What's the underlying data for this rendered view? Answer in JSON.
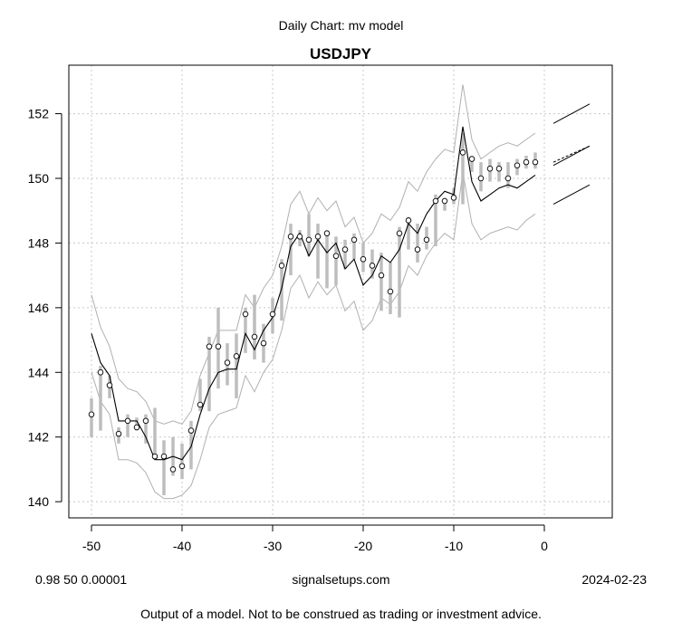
{
  "header": {
    "suptitle": "Daily Chart: mv model",
    "footer_left": "0.98 50 0.00001",
    "footer_center": "signalsetups.com",
    "footer_right": "2024-02-23",
    "disclaimer": "Output of a model.  Not to be construed as trading or investment advice."
  },
  "chart_data": {
    "type": "line",
    "title": "USDJPY",
    "xlabel": "",
    "ylabel": "",
    "xlim": [
      -52.5,
      7.5
    ],
    "ylim": [
      139.5,
      153.5
    ],
    "xticks": [
      -50,
      -40,
      -30,
      -20,
      -10,
      0
    ],
    "yticks": [
      140,
      142,
      144,
      146,
      148,
      150,
      152
    ],
    "grid": true,
    "colors": {
      "bars": "#bdbdbd",
      "model": "#000000",
      "bands": "#b0b0b0",
      "grid": "#c8c8c8"
    },
    "x": [
      -50,
      -49,
      -48,
      -47,
      -46,
      -45,
      -44,
      -43,
      -42,
      -41,
      -40,
      -39,
      -38,
      -37,
      -36,
      -35,
      -34,
      -33,
      -32,
      -31,
      -30,
      -29,
      -28,
      -27,
      -26,
      -25,
      -24,
      -23,
      -22,
      -21,
      -20,
      -19,
      -18,
      -17,
      -16,
      -15,
      -14,
      -13,
      -12,
      -11,
      -10,
      -9,
      -8,
      -7,
      -6,
      -5,
      -4,
      -3,
      -2,
      -1
    ],
    "series": [
      {
        "role": "close",
        "values": [
          142.7,
          144.0,
          143.6,
          142.1,
          142.5,
          142.3,
          142.5,
          141.4,
          141.4,
          141.0,
          141.1,
          142.2,
          143.0,
          144.8,
          144.8,
          144.3,
          144.5,
          145.8,
          145.1,
          144.9,
          145.8,
          147.3,
          148.2,
          148.2,
          148.1,
          148.2,
          148.3,
          147.6,
          147.8,
          148.1,
          147.5,
          147.3,
          147.0,
          146.5,
          148.3,
          148.7,
          147.8,
          148.1,
          149.3,
          149.3,
          149.4,
          150.8,
          150.6,
          150.0,
          150.3,
          150.3,
          150.0,
          150.4,
          150.5,
          150.5
        ]
      },
      {
        "role": "high",
        "values": [
          143.2,
          144.2,
          143.9,
          142.3,
          142.7,
          142.6,
          142.7,
          142.9,
          141.9,
          142.0,
          141.8,
          142.5,
          143.8,
          145.1,
          146.0,
          144.9,
          145.2,
          146.0,
          146.4,
          145.5,
          146.3,
          147.5,
          148.6,
          148.4,
          148.9,
          148.6,
          148.4,
          148.2,
          148.1,
          148.3,
          148.0,
          147.8,
          147.7,
          147.4,
          148.5,
          148.8,
          148.6,
          148.5,
          149.5,
          149.4,
          149.7,
          151.4,
          150.7,
          150.5,
          150.6,
          150.5,
          150.5,
          150.6,
          150.7,
          150.8
        ]
      },
      {
        "role": "low",
        "values": [
          142.0,
          142.2,
          143.2,
          141.8,
          142.0,
          142.2,
          141.8,
          141.3,
          140.2,
          140.8,
          140.7,
          141.0,
          142.8,
          142.8,
          143.5,
          143.6,
          143.2,
          144.6,
          144.4,
          144.3,
          145.2,
          145.6,
          147.0,
          147.9,
          147.6,
          146.9,
          146.6,
          146.7,
          147.2,
          147.5,
          147.1,
          146.9,
          145.9,
          145.8,
          145.7,
          147.8,
          147.4,
          147.8,
          147.9,
          149.0,
          149.2,
          149.2,
          150.2,
          149.6,
          149.9,
          149.9,
          149.7,
          150.1,
          150.3,
          150.3
        ]
      },
      {
        "role": "model",
        "values": [
          145.2,
          144.3,
          143.9,
          142.5,
          142.5,
          142.5,
          142.0,
          141.3,
          141.3,
          141.4,
          141.3,
          141.7,
          142.7,
          143.5,
          144.0,
          144.1,
          144.1,
          145.2,
          144.7,
          145.3,
          145.7,
          146.6,
          147.9,
          148.3,
          147.6,
          148.1,
          147.7,
          148.0,
          147.2,
          147.5,
          146.7,
          147.0,
          147.6,
          147.4,
          147.8,
          148.6,
          148.3,
          148.9,
          149.3,
          149.6,
          149.5,
          151.6,
          149.9,
          149.3,
          149.5,
          149.7,
          149.8,
          149.7,
          149.9,
          150.1
        ]
      },
      {
        "role": "upper_band",
        "values": [
          146.4,
          145.4,
          144.8,
          143.8,
          143.5,
          143.4,
          143.1,
          142.5,
          142.4,
          142.5,
          142.4,
          142.8,
          143.9,
          144.6,
          145.3,
          145.3,
          145.3,
          146.4,
          146.0,
          146.6,
          147.0,
          147.9,
          149.2,
          149.6,
          148.9,
          149.4,
          149.0,
          149.3,
          148.5,
          148.8,
          148.0,
          148.3,
          148.9,
          148.7,
          149.1,
          149.9,
          149.6,
          150.2,
          150.6,
          150.9,
          150.8,
          152.9,
          151.2,
          150.6,
          150.8,
          151.0,
          151.1,
          151.0,
          151.2,
          151.4
        ]
      },
      {
        "role": "lower_band",
        "values": [
          144.0,
          143.1,
          142.7,
          141.3,
          141.3,
          141.2,
          140.9,
          140.3,
          140.1,
          140.1,
          140.2,
          140.5,
          141.3,
          142.3,
          142.7,
          142.8,
          142.9,
          143.9,
          143.4,
          144.0,
          144.4,
          145.3,
          146.6,
          147.0,
          146.3,
          146.8,
          146.4,
          146.7,
          145.9,
          146.2,
          145.3,
          145.6,
          146.3,
          146.1,
          146.5,
          147.3,
          147.0,
          147.6,
          148.0,
          148.3,
          148.1,
          150.2,
          148.6,
          148.1,
          148.3,
          148.4,
          148.5,
          148.4,
          148.7,
          148.9
        ]
      },
      {
        "role": "forecast_upper",
        "x": [
          1,
          5
        ],
        "values": [
          151.7,
          152.3
        ]
      },
      {
        "role": "forecast_mid",
        "x": [
          1,
          5
        ],
        "values": [
          150.4,
          151.0
        ]
      },
      {
        "role": "forecast_mid_dashed",
        "x": [
          1,
          5
        ],
        "values": [
          150.5,
          151.0
        ]
      },
      {
        "role": "forecast_lower",
        "x": [
          1,
          5
        ],
        "values": [
          149.2,
          149.8
        ]
      }
    ]
  }
}
